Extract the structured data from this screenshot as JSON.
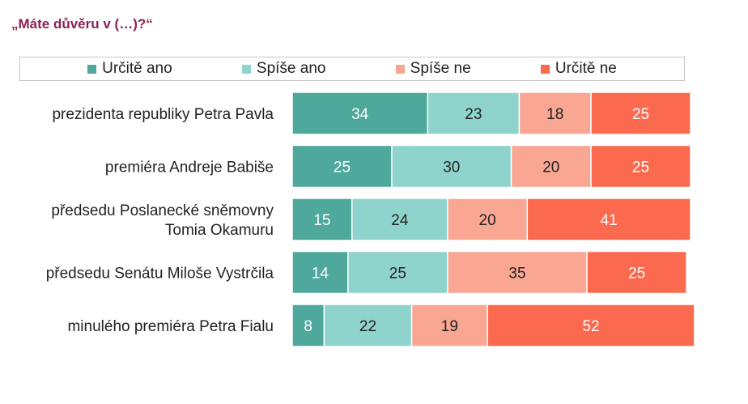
{
  "chart_data": {
    "type": "bar",
    "orientation": "horizontal",
    "stacked": true,
    "title": "„Máte důvěru v (…)?“",
    "categories": [
      [
        "prezidenta republiky Petra Pavla"
      ],
      [
        "premiéra Andreje Babiše"
      ],
      [
        "předsedu Poslanecké sněmovny",
        "Tomia Okamuru"
      ],
      [
        "předsedu Senátu Miloše Vystrčila"
      ],
      [
        "minulého premiéra Petra Fialu"
      ]
    ],
    "series": [
      {
        "name": "Určitě ano",
        "color": "#4ea89b",
        "text_color": "#ffffff",
        "values": [
          34,
          25,
          15,
          14,
          8
        ]
      },
      {
        "name": "Spíše ano",
        "color": "#8fd4cc",
        "text_color": "#222222",
        "values": [
          23,
          30,
          24,
          25,
          22
        ]
      },
      {
        "name": "Spíše ne",
        "color": "#f9a693",
        "text_color": "#222222",
        "values": [
          18,
          20,
          20,
          35,
          19
        ]
      },
      {
        "name": "Určitě ne",
        "color": "#fb6a4f",
        "text_color": "#ffffff",
        "values": [
          25,
          25,
          41,
          25,
          52
        ]
      }
    ],
    "xlim": [
      0,
      100
    ],
    "legend_position": "top"
  }
}
